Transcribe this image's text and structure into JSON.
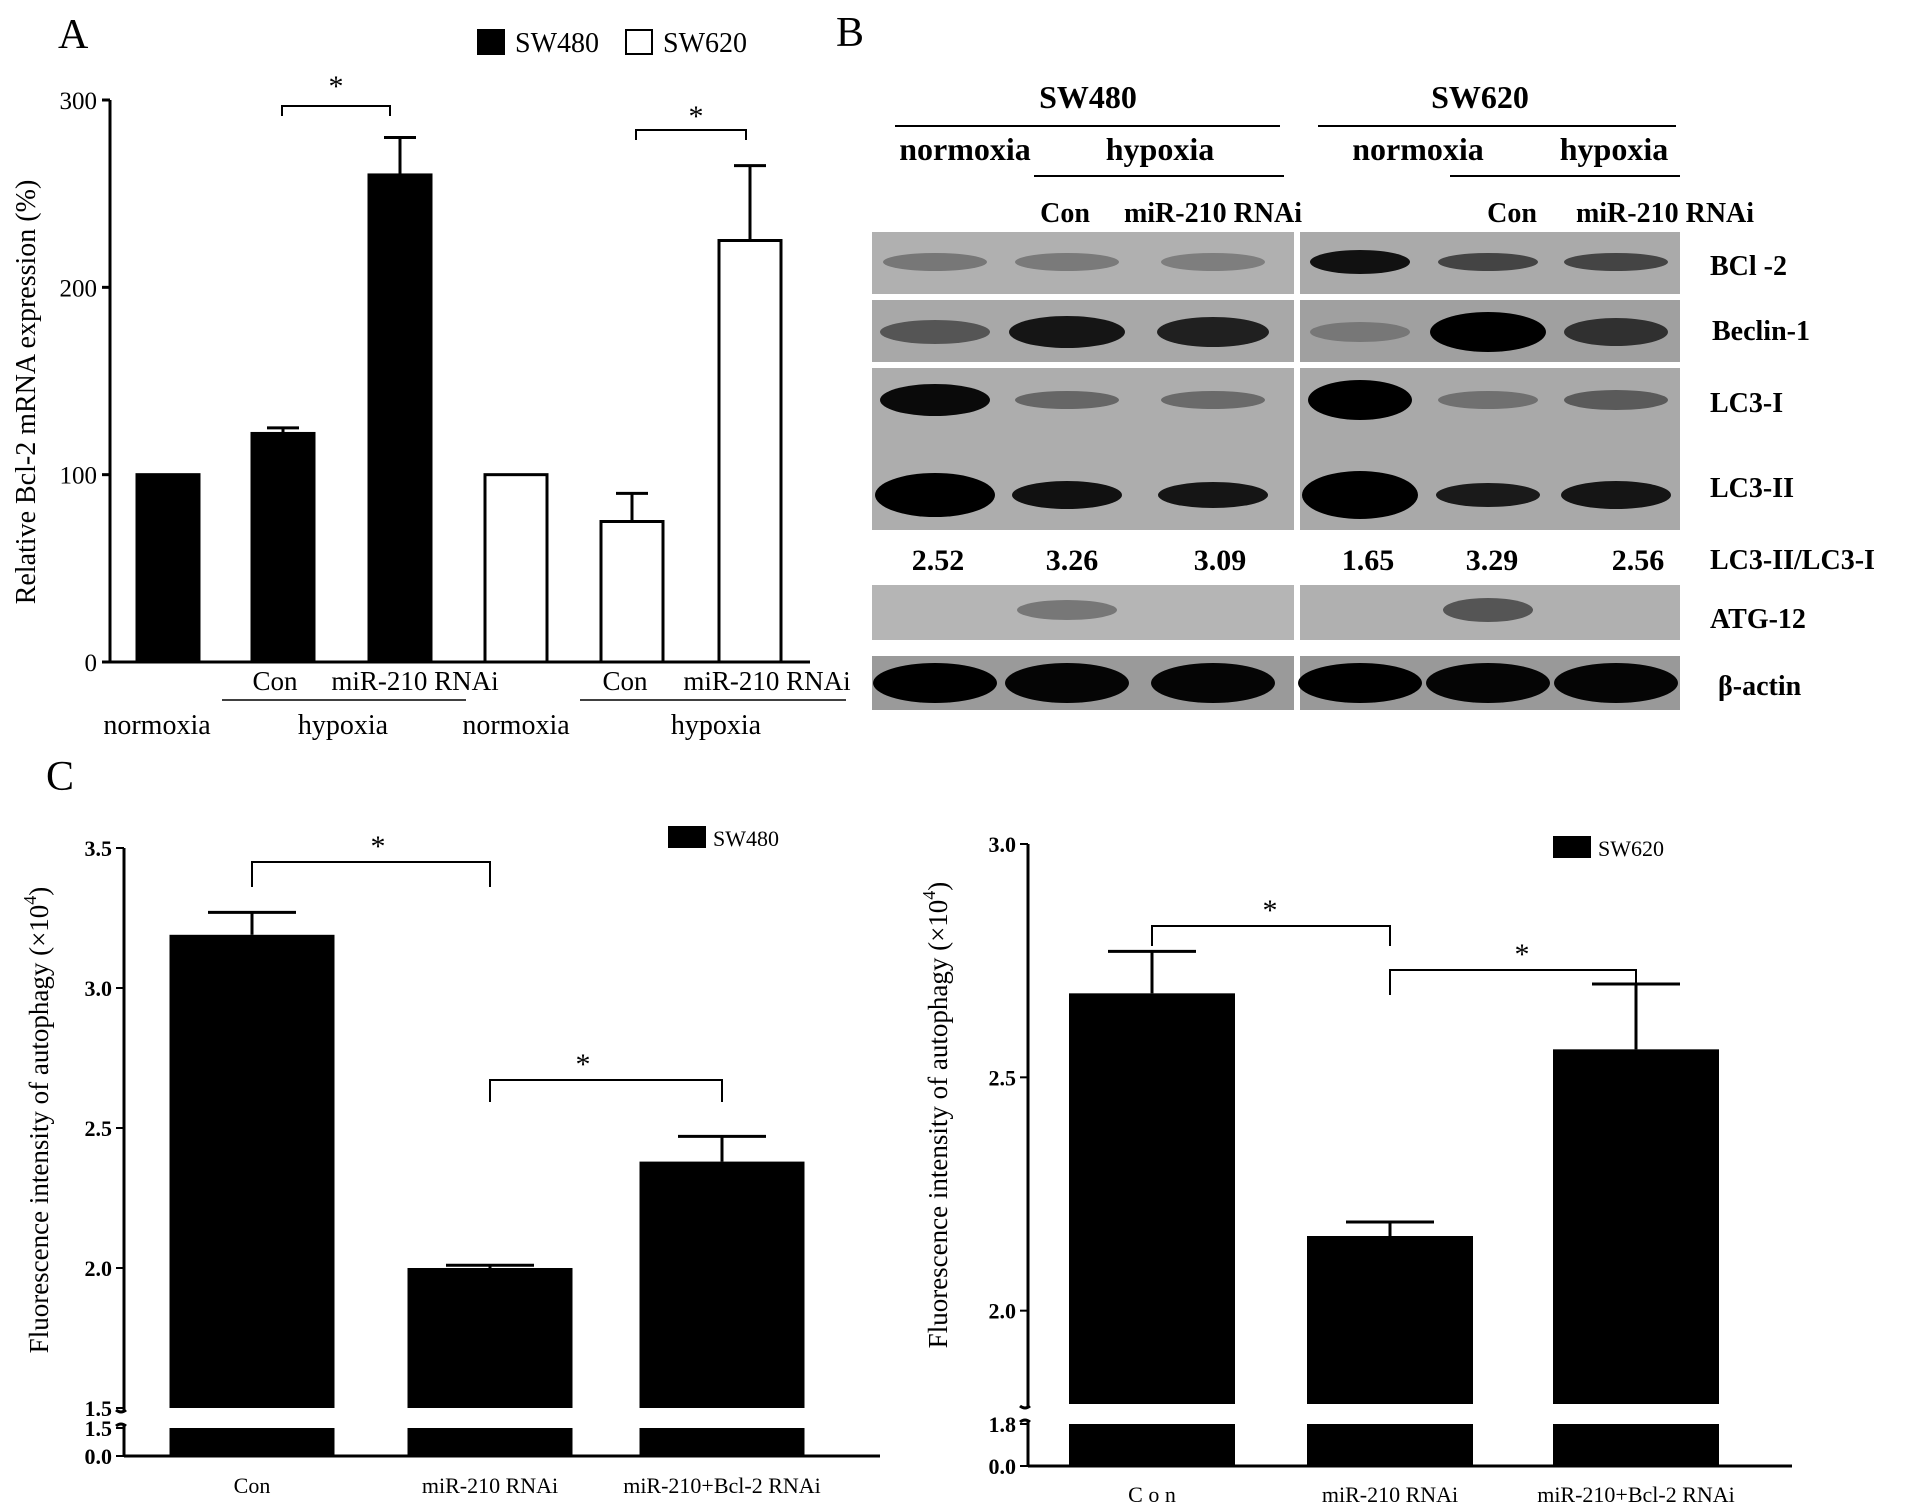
{
  "panels": {
    "A": "A",
    "B": "B",
    "C": "C"
  },
  "chart_data": [
    {
      "type": "bar",
      "panel": "A",
      "ylabel": "Relative Bcl-2 mRNA expression (%)",
      "ylim": [
        0,
        300
      ],
      "yticks": [
        0,
        100,
        200,
        300
      ],
      "legend": [
        "SW480",
        "SW620"
      ],
      "legend_position": "top",
      "series": [
        {
          "name": "SW480",
          "color": "#000000",
          "bars": [
            {
              "label": "",
              "value": 100,
              "error": 0
            },
            {
              "label": "Con",
              "value": 122,
              "error": 3
            },
            {
              "label": "miR-210 RNAi",
              "value": 260,
              "error": 20
            }
          ]
        },
        {
          "name": "SW620",
          "color": "#ffffff",
          "bars": [
            {
              "label": "",
              "value": 100,
              "error": 0
            },
            {
              "label": "Con",
              "value": 75,
              "error": 15
            },
            {
              "label": "miR-210 RNAi",
              "value": 225,
              "error": 40
            }
          ]
        }
      ],
      "group_labels": [
        "normoxia",
        "hypoxia",
        "normoxia",
        "hypoxia"
      ],
      "significance": [
        "*",
        "*"
      ]
    },
    {
      "type": "bar",
      "panel": "C-left",
      "ylabel": "Fluorescence intensity of autophagy (×10",
      "ylabel_sup": "4",
      "ylabel_close": ")",
      "legend": [
        "SW480"
      ],
      "ylim_upper": [
        1.5,
        3.5
      ],
      "ylim_lower": [
        0.0,
        1.5
      ],
      "yticks_upper": [
        "1.5",
        "2.0",
        "2.5",
        "3.0",
        "3.5"
      ],
      "yticks_lower": [
        "1.5",
        "0.0"
      ],
      "categories": [
        "Con",
        "miR-210 RNAi",
        "miR-210+Bcl-2 RNAi"
      ],
      "values": [
        3.19,
        2.0,
        2.38
      ],
      "errors": [
        0.08,
        0.01,
        0.09
      ],
      "significance": [
        "*",
        "*"
      ]
    },
    {
      "type": "bar",
      "panel": "C-right",
      "ylabel": "Fluorescence intensity of autophagy (×10",
      "ylabel_sup": "4",
      "ylabel_close": ")",
      "legend": [
        "SW620"
      ],
      "ylim_upper": [
        1.8,
        3.0
      ],
      "ylim_lower": [
        0.0,
        1.8
      ],
      "yticks_upper": [
        "2.0",
        "2.5",
        "3.0"
      ],
      "yticks_lower": [
        "1.8",
        "0.0"
      ],
      "categories": [
        "C o n",
        "miR-210 RNAi",
        "miR-210+Bcl-2 RNAi"
      ],
      "values": [
        2.68,
        2.16,
        2.56
      ],
      "errors": [
        0.09,
        0.03,
        0.14
      ],
      "significance": [
        "*",
        "*"
      ]
    }
  ],
  "blot": {
    "cell_lines": [
      "SW480",
      "SW620"
    ],
    "conditions": [
      "normoxia",
      "hypoxia",
      "normoxia",
      "hypoxia"
    ],
    "treatments": [
      "Con",
      "miR-210 RNAi",
      "Con",
      "miR-210 RNAi"
    ],
    "proteins": [
      "BCl -2",
      "Beclin-1",
      "LC3-I",
      "LC3-II",
      "LC3-II/LC3-I",
      "ATG-12",
      "β-actin"
    ],
    "ratios": [
      "2.52",
      "3.26",
      "3.09",
      "1.65",
      "3.29",
      "2.56"
    ]
  }
}
